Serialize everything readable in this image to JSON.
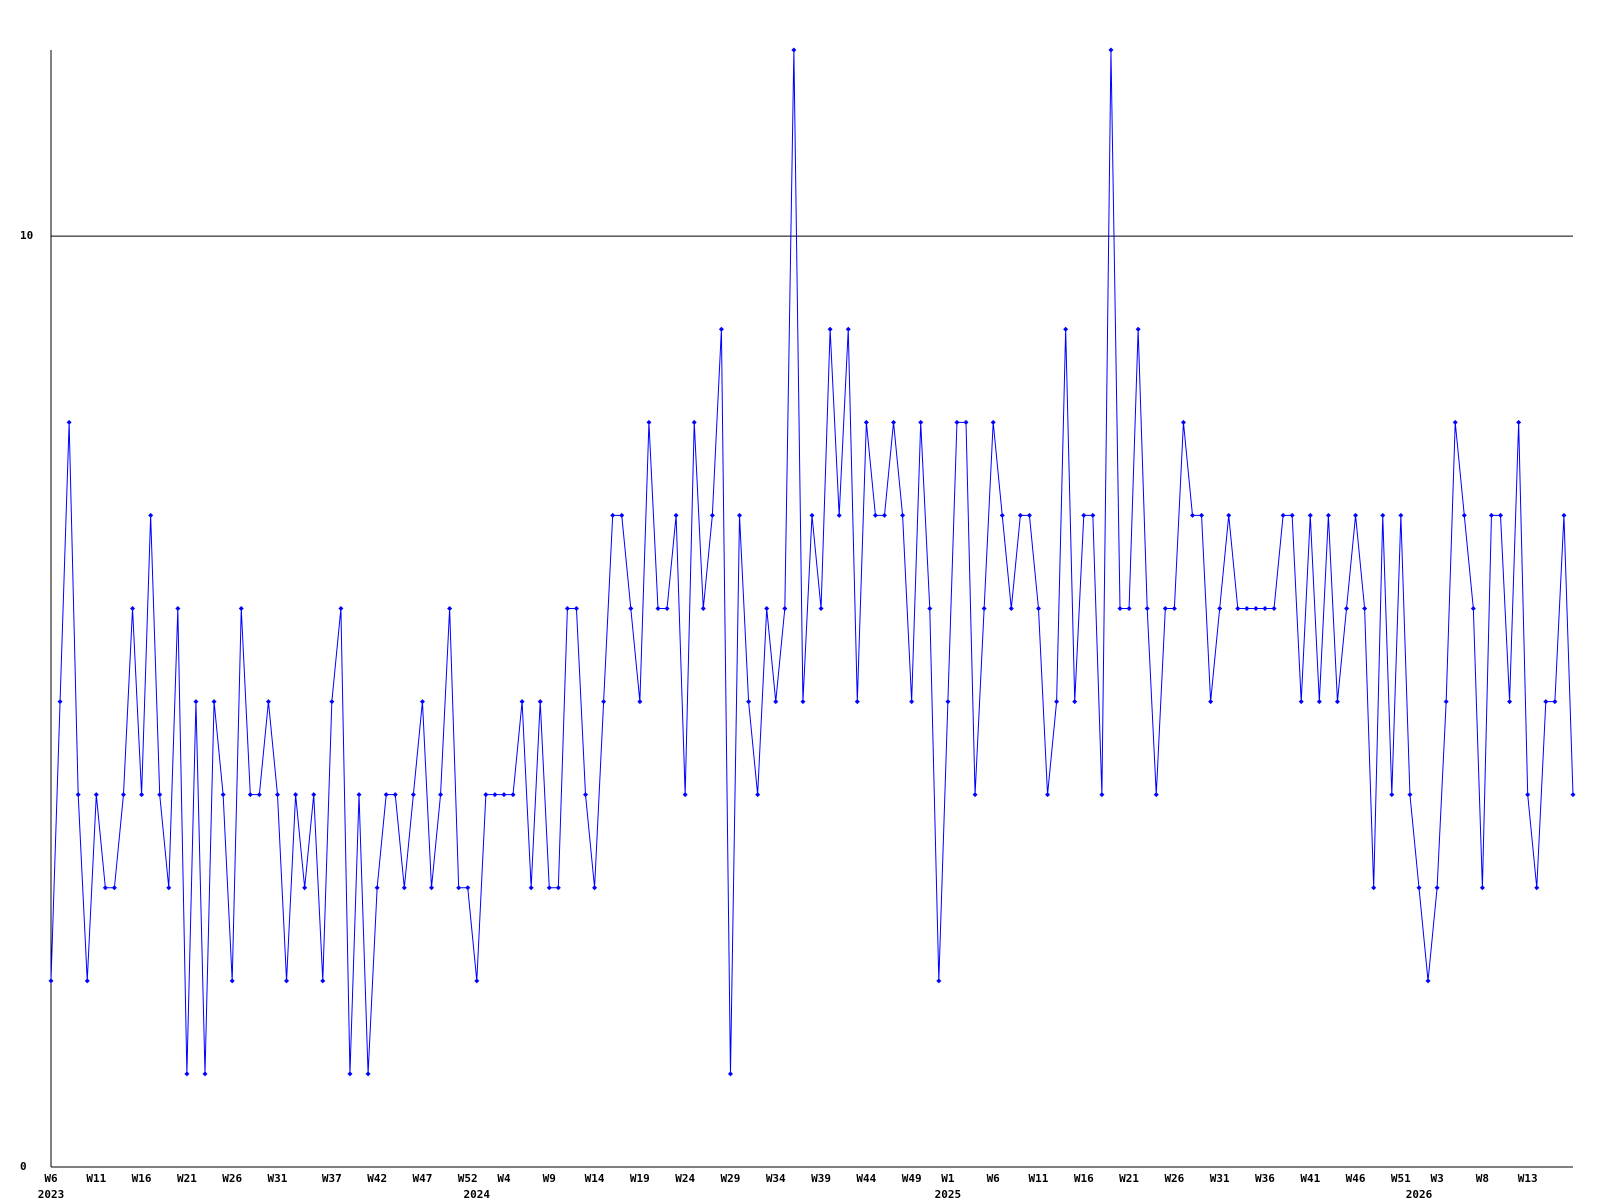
{
  "chart_data": {
    "type": "line",
    "color": "#0000ff",
    "grid": true,
    "ylim": [
      0,
      12
    ],
    "yticks": [
      0,
      10
    ],
    "categories": [
      "W6",
      null,
      null,
      null,
      null,
      "W11",
      null,
      null,
      null,
      null,
      "W16",
      null,
      null,
      null,
      null,
      "W21",
      null,
      null,
      null,
      null,
      "W26",
      null,
      null,
      null,
      null,
      "W31",
      null,
      null,
      null,
      null,
      null,
      "W37",
      null,
      null,
      null,
      null,
      "W42",
      null,
      null,
      null,
      null,
      "W47",
      null,
      null,
      null,
      null,
      "W52",
      null,
      null,
      null,
      "W4",
      null,
      null,
      null,
      null,
      "W9",
      null,
      null,
      null,
      null,
      "W14",
      null,
      null,
      null,
      null,
      "W19",
      null,
      null,
      null,
      null,
      "W24",
      null,
      null,
      null,
      null,
      "W29",
      null,
      null,
      null,
      null,
      "W34",
      null,
      null,
      null,
      null,
      "W39",
      null,
      null,
      null,
      null,
      "W44",
      null,
      null,
      null,
      null,
      "W49",
      null,
      null,
      null,
      "W1",
      null,
      null,
      null,
      null,
      "W6",
      null,
      null,
      null,
      null,
      "W11",
      null,
      null,
      null,
      null,
      "W16",
      null,
      null,
      null,
      null,
      "W21",
      null,
      null,
      null,
      null,
      "W26",
      null,
      null,
      null,
      null,
      "W31",
      null,
      null,
      null,
      null,
      "W36",
      null,
      null,
      null,
      null,
      "W41",
      null,
      null,
      null,
      null,
      "W46",
      null,
      null,
      null,
      null,
      "W51",
      null,
      null,
      null,
      "W3",
      null,
      null,
      null,
      null,
      "W8",
      null,
      null,
      null,
      null,
      "W13",
      null,
      null,
      null,
      null,
      null
    ],
    "year_categories": [
      "2023",
      null,
      null,
      null,
      null,
      null,
      null,
      null,
      null,
      null,
      null,
      null,
      null,
      null,
      null,
      null,
      null,
      null,
      null,
      null,
      null,
      null,
      null,
      null,
      null,
      null,
      null,
      null,
      null,
      null,
      null,
      null,
      null,
      null,
      null,
      null,
      null,
      null,
      null,
      null,
      null,
      null,
      null,
      null,
      null,
      null,
      null,
      "2024",
      null,
      null,
      null,
      null,
      null,
      null,
      null,
      null,
      null,
      null,
      null,
      null,
      null,
      null,
      null,
      null,
      null,
      null,
      null,
      null,
      null,
      null,
      null,
      null,
      null,
      null,
      null,
      null,
      null,
      null,
      null,
      null,
      null,
      null,
      null,
      null,
      null,
      null,
      null,
      null,
      null,
      null,
      null,
      null,
      null,
      null,
      null,
      null,
      null,
      null,
      null,
      "2025",
      null,
      null,
      null,
      null,
      null,
      null,
      null,
      null,
      null,
      null,
      null,
      null,
      null,
      null,
      null,
      null,
      null,
      null,
      null,
      null,
      null,
      null,
      null,
      null,
      null,
      null,
      null,
      null,
      null,
      null,
      null,
      null,
      null,
      null,
      null,
      null,
      null,
      null,
      null,
      null,
      null,
      null,
      null,
      null,
      null,
      null,
      null,
      null,
      null,
      null,
      null,
      "2026",
      null,
      null,
      null,
      null,
      null,
      null,
      null,
      null,
      null,
      null,
      null,
      null,
      null,
      null,
      null,
      null,
      null
    ],
    "values": [
      2,
      5,
      8,
      4,
      2,
      4,
      3,
      3,
      4,
      6,
      4,
      7,
      4,
      3,
      6,
      1,
      5,
      1,
      5,
      4,
      2,
      6,
      4,
      4,
      5,
      4,
      2,
      4,
      3,
      4,
      2,
      5,
      6,
      1,
      4,
      1,
      3,
      4,
      4,
      3,
      4,
      5,
      3,
      4,
      6,
      3,
      3,
      2,
      4,
      4,
      4,
      4,
      5,
      3,
      5,
      3,
      3,
      6,
      6,
      4,
      3,
      5,
      7,
      7,
      6,
      5,
      8,
      6,
      6,
      7,
      4,
      8,
      6,
      7,
      9,
      1,
      7,
      5,
      4,
      6,
      5,
      6,
      12,
      5,
      7,
      6,
      9,
      7,
      9,
      5,
      8,
      7,
      7,
      8,
      7,
      5,
      8,
      6,
      2,
      5,
      8,
      8,
      4,
      6,
      8,
      7,
      6,
      7,
      7,
      6,
      4,
      5,
      9,
      5,
      7,
      7,
      4,
      12,
      6,
      6,
      9,
      6,
      4,
      6,
      6,
      8,
      7,
      7,
      5,
      6,
      7,
      6,
      6,
      6,
      6,
      6,
      7,
      7,
      5,
      7,
      5,
      7,
      5,
      6,
      7,
      6,
      3,
      7,
      4,
      7,
      4,
      3,
      2,
      3,
      5,
      8,
      7,
      6,
      3,
      7,
      7,
      5,
      8,
      4,
      3,
      5,
      5,
      7,
      4
    ]
  }
}
